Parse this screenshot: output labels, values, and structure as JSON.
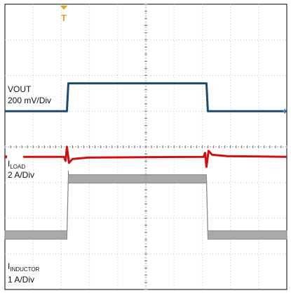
{
  "chart_data": {
    "type": "line",
    "title": "",
    "grid": true,
    "divisions": {
      "x": 10,
      "y": 8
    },
    "traces": [
      {
        "name": "VOUT",
        "label_main": "VOUT",
        "label_sub": "",
        "scale": "200 mV/Div",
        "color": "#d01010",
        "low": 3.72,
        "high": 3.72,
        "rise_div": 2.2,
        "fall_div": 7.15,
        "transient_div": 0.28
      },
      {
        "name": "ILOAD",
        "label_main": "I",
        "label_sub": "LOAD",
        "scale": "2 A/Div",
        "color": "#1e4a6b",
        "low": 5.0,
        "high": 5.78,
        "rise_div": 2.2,
        "fall_div": 7.15,
        "transient_div": 0
      },
      {
        "name": "IINDUCTOR",
        "label_main": "I",
        "label_sub": "INDUCTOR",
        "scale": "1 A/Div",
        "color": "#9a9a9a",
        "low": 1.53,
        "high": 3.1,
        "rise_div": 2.2,
        "fall_div": 7.15,
        "transient_div": 0,
        "band": true
      }
    ],
    "trigger_marker": {
      "label": "T",
      "color": "#e8a317"
    }
  }
}
